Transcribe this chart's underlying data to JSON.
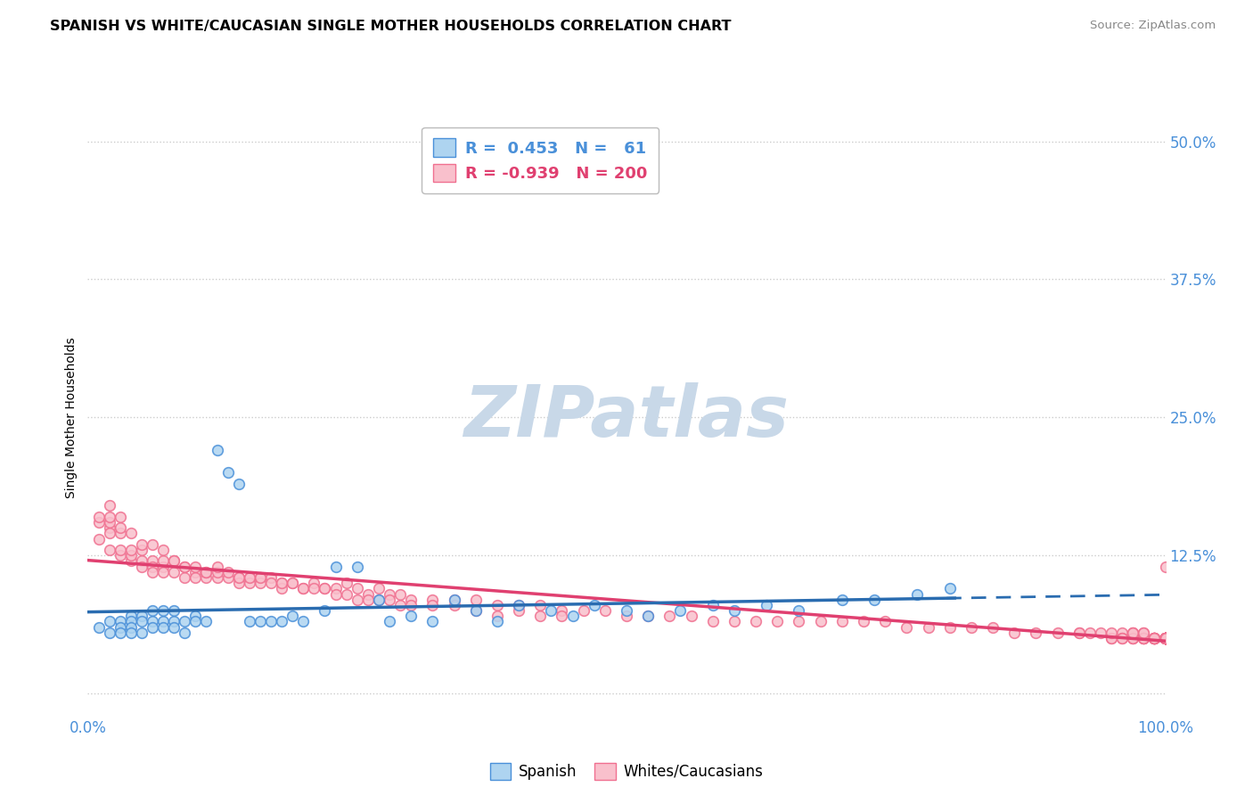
{
  "title": "SPANISH VS WHITE/CAUCASIAN SINGLE MOTHER HOUSEHOLDS CORRELATION CHART",
  "source": "Source: ZipAtlas.com",
  "ylabel": "Single Mother Households",
  "xlim": [
    0.0,
    1.0
  ],
  "ylim": [
    -0.02,
    0.52
  ],
  "yticks": [
    0.0,
    0.125,
    0.25,
    0.375,
    0.5
  ],
  "ytick_labels": [
    "",
    "12.5%",
    "25.0%",
    "37.5%",
    "50.0%"
  ],
  "xtick_labels": [
    "0.0%",
    "100.0%"
  ],
  "spanish_R": 0.453,
  "spanish_N": 61,
  "white_R": -0.939,
  "white_N": 200,
  "blue_fill": "#aed4f0",
  "pink_fill": "#f9c0cc",
  "blue_edge": "#4a90d9",
  "pink_edge": "#f07090",
  "blue_line": "#2a6cb0",
  "pink_line": "#e04070",
  "legend_blue": "#4a90d9",
  "legend_pink": "#e04070",
  "watermark_color": "#c8d8e8",
  "background_color": "#ffffff",
  "grid_color": "#cccccc",
  "tick_label_color": "#4a90d9",
  "title_fontsize": 12,
  "spanish_x": [
    0.01,
    0.02,
    0.02,
    0.03,
    0.03,
    0.03,
    0.04,
    0.04,
    0.04,
    0.04,
    0.05,
    0.05,
    0.05,
    0.06,
    0.06,
    0.06,
    0.07,
    0.07,
    0.07,
    0.08,
    0.08,
    0.08,
    0.09,
    0.09,
    0.1,
    0.1,
    0.11,
    0.12,
    0.13,
    0.14,
    0.15,
    0.16,
    0.17,
    0.18,
    0.19,
    0.2,
    0.22,
    0.23,
    0.25,
    0.27,
    0.28,
    0.3,
    0.32,
    0.34,
    0.36,
    0.38,
    0.4,
    0.43,
    0.45,
    0.47,
    0.5,
    0.52,
    0.55,
    0.58,
    0.6,
    0.63,
    0.66,
    0.7,
    0.73,
    0.77,
    0.8
  ],
  "spanish_y": [
    0.06,
    0.065,
    0.055,
    0.065,
    0.06,
    0.055,
    0.07,
    0.065,
    0.06,
    0.055,
    0.07,
    0.065,
    0.055,
    0.075,
    0.065,
    0.06,
    0.065,
    0.075,
    0.06,
    0.065,
    0.075,
    0.06,
    0.065,
    0.055,
    0.07,
    0.065,
    0.065,
    0.22,
    0.2,
    0.19,
    0.065,
    0.065,
    0.065,
    0.065,
    0.07,
    0.065,
    0.075,
    0.115,
    0.115,
    0.085,
    0.065,
    0.07,
    0.065,
    0.085,
    0.075,
    0.065,
    0.08,
    0.075,
    0.07,
    0.08,
    0.075,
    0.07,
    0.075,
    0.08,
    0.075,
    0.08,
    0.075,
    0.085,
    0.085,
    0.09,
    0.095
  ],
  "white_x": [
    0.01,
    0.01,
    0.01,
    0.02,
    0.02,
    0.02,
    0.02,
    0.03,
    0.03,
    0.03,
    0.03,
    0.04,
    0.04,
    0.04,
    0.05,
    0.05,
    0.05,
    0.06,
    0.06,
    0.06,
    0.07,
    0.07,
    0.07,
    0.08,
    0.08,
    0.09,
    0.09,
    0.1,
    0.1,
    0.11,
    0.11,
    0.12,
    0.12,
    0.13,
    0.14,
    0.14,
    0.15,
    0.15,
    0.16,
    0.16,
    0.17,
    0.18,
    0.18,
    0.19,
    0.2,
    0.21,
    0.22,
    0.23,
    0.24,
    0.25,
    0.26,
    0.27,
    0.28,
    0.29,
    0.3,
    0.32,
    0.34,
    0.36,
    0.38,
    0.4,
    0.42,
    0.44,
    0.46,
    0.48,
    0.5,
    0.52,
    0.54,
    0.56,
    0.58,
    0.6,
    0.62,
    0.64,
    0.66,
    0.68,
    0.7,
    0.72,
    0.74,
    0.76,
    0.78,
    0.8,
    0.82,
    0.84,
    0.86,
    0.88,
    0.9,
    0.92,
    0.93,
    0.94,
    0.95,
    0.95,
    0.96,
    0.96,
    0.96,
    0.97,
    0.97,
    0.97,
    0.97,
    0.97,
    0.98,
    0.98,
    0.98,
    0.98,
    0.98,
    0.98,
    0.99,
    0.99,
    0.99,
    0.99,
    0.99,
    0.99,
    0.99,
    0.99,
    0.99,
    1.0,
    1.0,
    1.0,
    1.0,
    1.0,
    1.0,
    1.0,
    1.0,
    1.0,
    1.0,
    1.0,
    1.0,
    1.0,
    1.0,
    1.0,
    1.0,
    1.0,
    1.0,
    1.0,
    1.0,
    1.0,
    1.0,
    1.0,
    1.0,
    1.0,
    1.0,
    1.0,
    0.02,
    0.02,
    0.03,
    0.04,
    0.05,
    0.06,
    0.07,
    0.08,
    0.09,
    0.1,
    0.11,
    0.12,
    0.13,
    0.14,
    0.15,
    0.16,
    0.17,
    0.18,
    0.19,
    0.2,
    0.21,
    0.22,
    0.23,
    0.24,
    0.25,
    0.26,
    0.27,
    0.28,
    0.29,
    0.3,
    0.32,
    0.34,
    0.36,
    0.38,
    0.4,
    0.42,
    0.44,
    0.92,
    0.95,
    0.97,
    0.98,
    0.99,
    1.0,
    1.0,
    1.0,
    1.0,
    1.0,
    1.0,
    1.0,
    1.0,
    1.0,
    1.0,
    1.0,
    1.0,
    1.0,
    1.0,
    1.0,
    1.0,
    1.0,
    1.0
  ],
  "white_y": [
    0.155,
    0.14,
    0.16,
    0.15,
    0.13,
    0.145,
    0.155,
    0.145,
    0.15,
    0.125,
    0.13,
    0.12,
    0.125,
    0.13,
    0.12,
    0.115,
    0.13,
    0.12,
    0.115,
    0.11,
    0.115,
    0.12,
    0.11,
    0.12,
    0.11,
    0.115,
    0.105,
    0.11,
    0.105,
    0.105,
    0.11,
    0.105,
    0.11,
    0.105,
    0.105,
    0.1,
    0.105,
    0.1,
    0.105,
    0.1,
    0.105,
    0.1,
    0.095,
    0.1,
    0.095,
    0.1,
    0.095,
    0.095,
    0.1,
    0.095,
    0.09,
    0.095,
    0.09,
    0.09,
    0.085,
    0.085,
    0.085,
    0.085,
    0.08,
    0.08,
    0.08,
    0.075,
    0.075,
    0.075,
    0.07,
    0.07,
    0.07,
    0.07,
    0.065,
    0.065,
    0.065,
    0.065,
    0.065,
    0.065,
    0.065,
    0.065,
    0.065,
    0.06,
    0.06,
    0.06,
    0.06,
    0.06,
    0.055,
    0.055,
    0.055,
    0.055,
    0.055,
    0.055,
    0.05,
    0.05,
    0.055,
    0.05,
    0.05,
    0.055,
    0.05,
    0.05,
    0.055,
    0.05,
    0.055,
    0.05,
    0.05,
    0.05,
    0.05,
    0.05,
    0.05,
    0.05,
    0.05,
    0.05,
    0.05,
    0.05,
    0.05,
    0.05,
    0.05,
    0.05,
    0.05,
    0.05,
    0.05,
    0.05,
    0.05,
    0.05,
    0.05,
    0.05,
    0.05,
    0.05,
    0.05,
    0.05,
    0.05,
    0.05,
    0.05,
    0.05,
    0.05,
    0.05,
    0.05,
    0.05,
    0.05,
    0.05,
    0.05,
    0.05,
    0.05,
    0.05,
    0.17,
    0.16,
    0.16,
    0.145,
    0.135,
    0.135,
    0.13,
    0.12,
    0.115,
    0.115,
    0.11,
    0.115,
    0.11,
    0.105,
    0.105,
    0.105,
    0.1,
    0.1,
    0.1,
    0.095,
    0.095,
    0.095,
    0.09,
    0.09,
    0.085,
    0.085,
    0.085,
    0.085,
    0.08,
    0.08,
    0.08,
    0.08,
    0.075,
    0.07,
    0.075,
    0.07,
    0.07,
    0.055,
    0.055,
    0.055,
    0.055,
    0.05,
    0.05,
    0.05,
    0.05,
    0.05,
    0.05,
    0.05,
    0.05,
    0.05,
    0.05,
    0.05,
    0.05,
    0.05,
    0.05,
    0.05,
    0.05,
    0.05,
    0.05,
    0.115
  ]
}
